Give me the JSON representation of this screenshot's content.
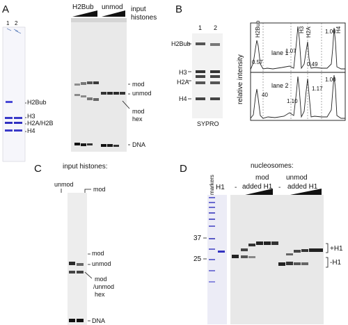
{
  "panel_a": {
    "letter": "A",
    "coomassie_lanes": [
      "1",
      "2"
    ],
    "coomassie_bands": [
      "H2Bub",
      "H3",
      "H2A/H2B",
      "H4"
    ],
    "gel_headers": [
      "H2Bub",
      "unmod"
    ],
    "gel_header_note_1": "input",
    "gel_header_note_2": "histones",
    "gel_labels": [
      "mod",
      "unmod",
      "mod",
      "hex",
      "DNA"
    ]
  },
  "panel_b": {
    "letter": "B",
    "lanes": [
      "1",
      "2"
    ],
    "gel_bands": [
      "H2Bub",
      "H3",
      "H2A",
      "H4"
    ],
    "stain": "SYPRO",
    "col_headers": [
      "H2Bub",
      "H3",
      "H2A",
      "H4"
    ],
    "ylabel": "relative intensity",
    "trace_1": {
      "name": "lane 1",
      "values": [
        "0.57",
        "1.07",
        "0.49",
        "1.00"
      ]
    },
    "trace_2": {
      "name": "lane 2",
      "values": [
        "40",
        "1.10",
        "1.17",
        "1.00"
      ]
    }
  },
  "panel_c": {
    "letter": "C",
    "title": "input histones:",
    "lane_labels": [
      "unmod",
      "mod"
    ],
    "labels": [
      "mod",
      "unmod",
      "mod",
      "/unmod",
      "hex",
      "DNA"
    ]
  },
  "panel_d": {
    "letter": "D",
    "title": "nucleosomes:",
    "markers_label": "markers",
    "h1_lane_label": "H1",
    "groups": [
      "mod",
      "unmod"
    ],
    "minus": "-",
    "added_label": "added H1",
    "mw_markers": [
      "37",
      "25"
    ],
    "right_labels": [
      "+H1",
      "-H1"
    ]
  }
}
